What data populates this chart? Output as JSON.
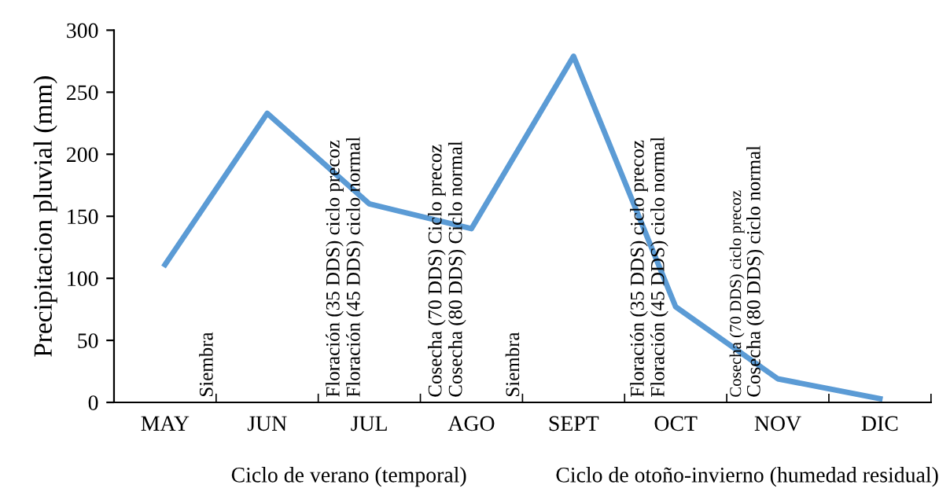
{
  "chart_data": {
    "type": "line",
    "ylabel": "Precipitacion pluvial (mm)",
    "categories": [
      "MAY",
      "JUN",
      "JUL",
      "AGO",
      "SEPT",
      "OCT",
      "NOV",
      "DIC"
    ],
    "series": [
      {
        "color": "#5b9bd5",
        "values": [
          111,
          233,
          160,
          140,
          279,
          77,
          19,
          3
        ]
      }
    ],
    "ylim": [
      0,
      300
    ],
    "yticks": [
      0,
      50,
      100,
      150,
      200,
      250,
      300
    ],
    "grid": false,
    "legend": false,
    "marker": "none",
    "line_style": "solid",
    "annotations": [
      "Ciclo de verano (temporal)",
      "Ciclo de otoño-invierno (humedad residual)",
      "Siembra",
      "Floración (35 DDS) ciclo precoz",
      "Floración (45 DDS) ciclo normal",
      "Cosecha (70 DDS) Ciclo precoz",
      "Cosecha (80 DDS) Ciclo normal",
      "Siembra",
      "Floración (35 DDS) ciclo precoz",
      "Floración (45 DDS) ciclo normal",
      "Cosecha (70 DDS) ciclo precoz",
      "Cosecha (80 DDS) ciclo normal"
    ]
  }
}
